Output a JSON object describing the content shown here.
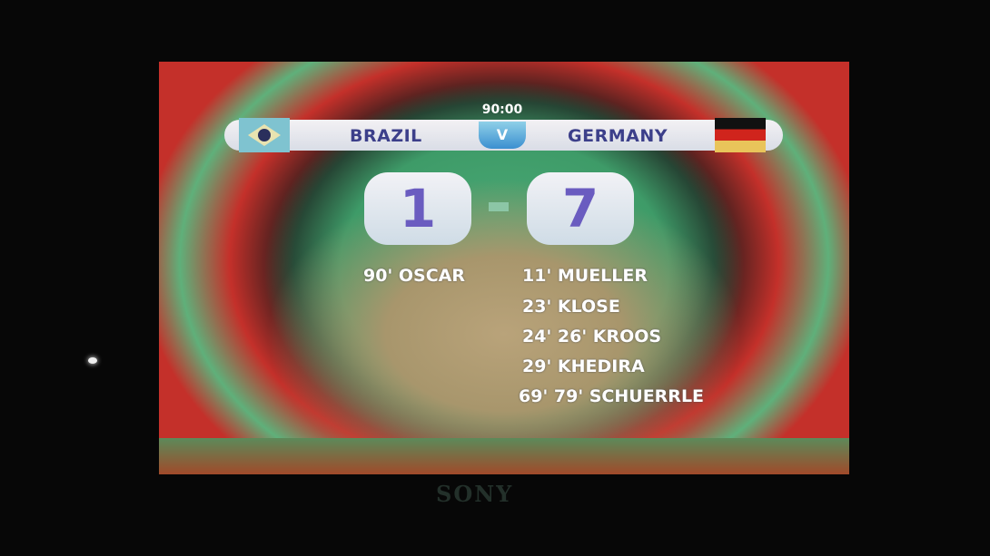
{
  "scoreboard": {
    "clock": "90:00",
    "home_team": "BRAZIL",
    "away_team": "GERMANY",
    "versus": "V",
    "home_score": "1",
    "away_score": "7",
    "home_scorers": [
      "90' OSCAR"
    ],
    "away_scorers": [
      "11' MUELLER",
      "23' KLOSE",
      "24' 26' KROOS",
      "29' KHEDIRA",
      "69' 79' SCHUERRLE"
    ]
  },
  "sponsor_logo": "SONY"
}
